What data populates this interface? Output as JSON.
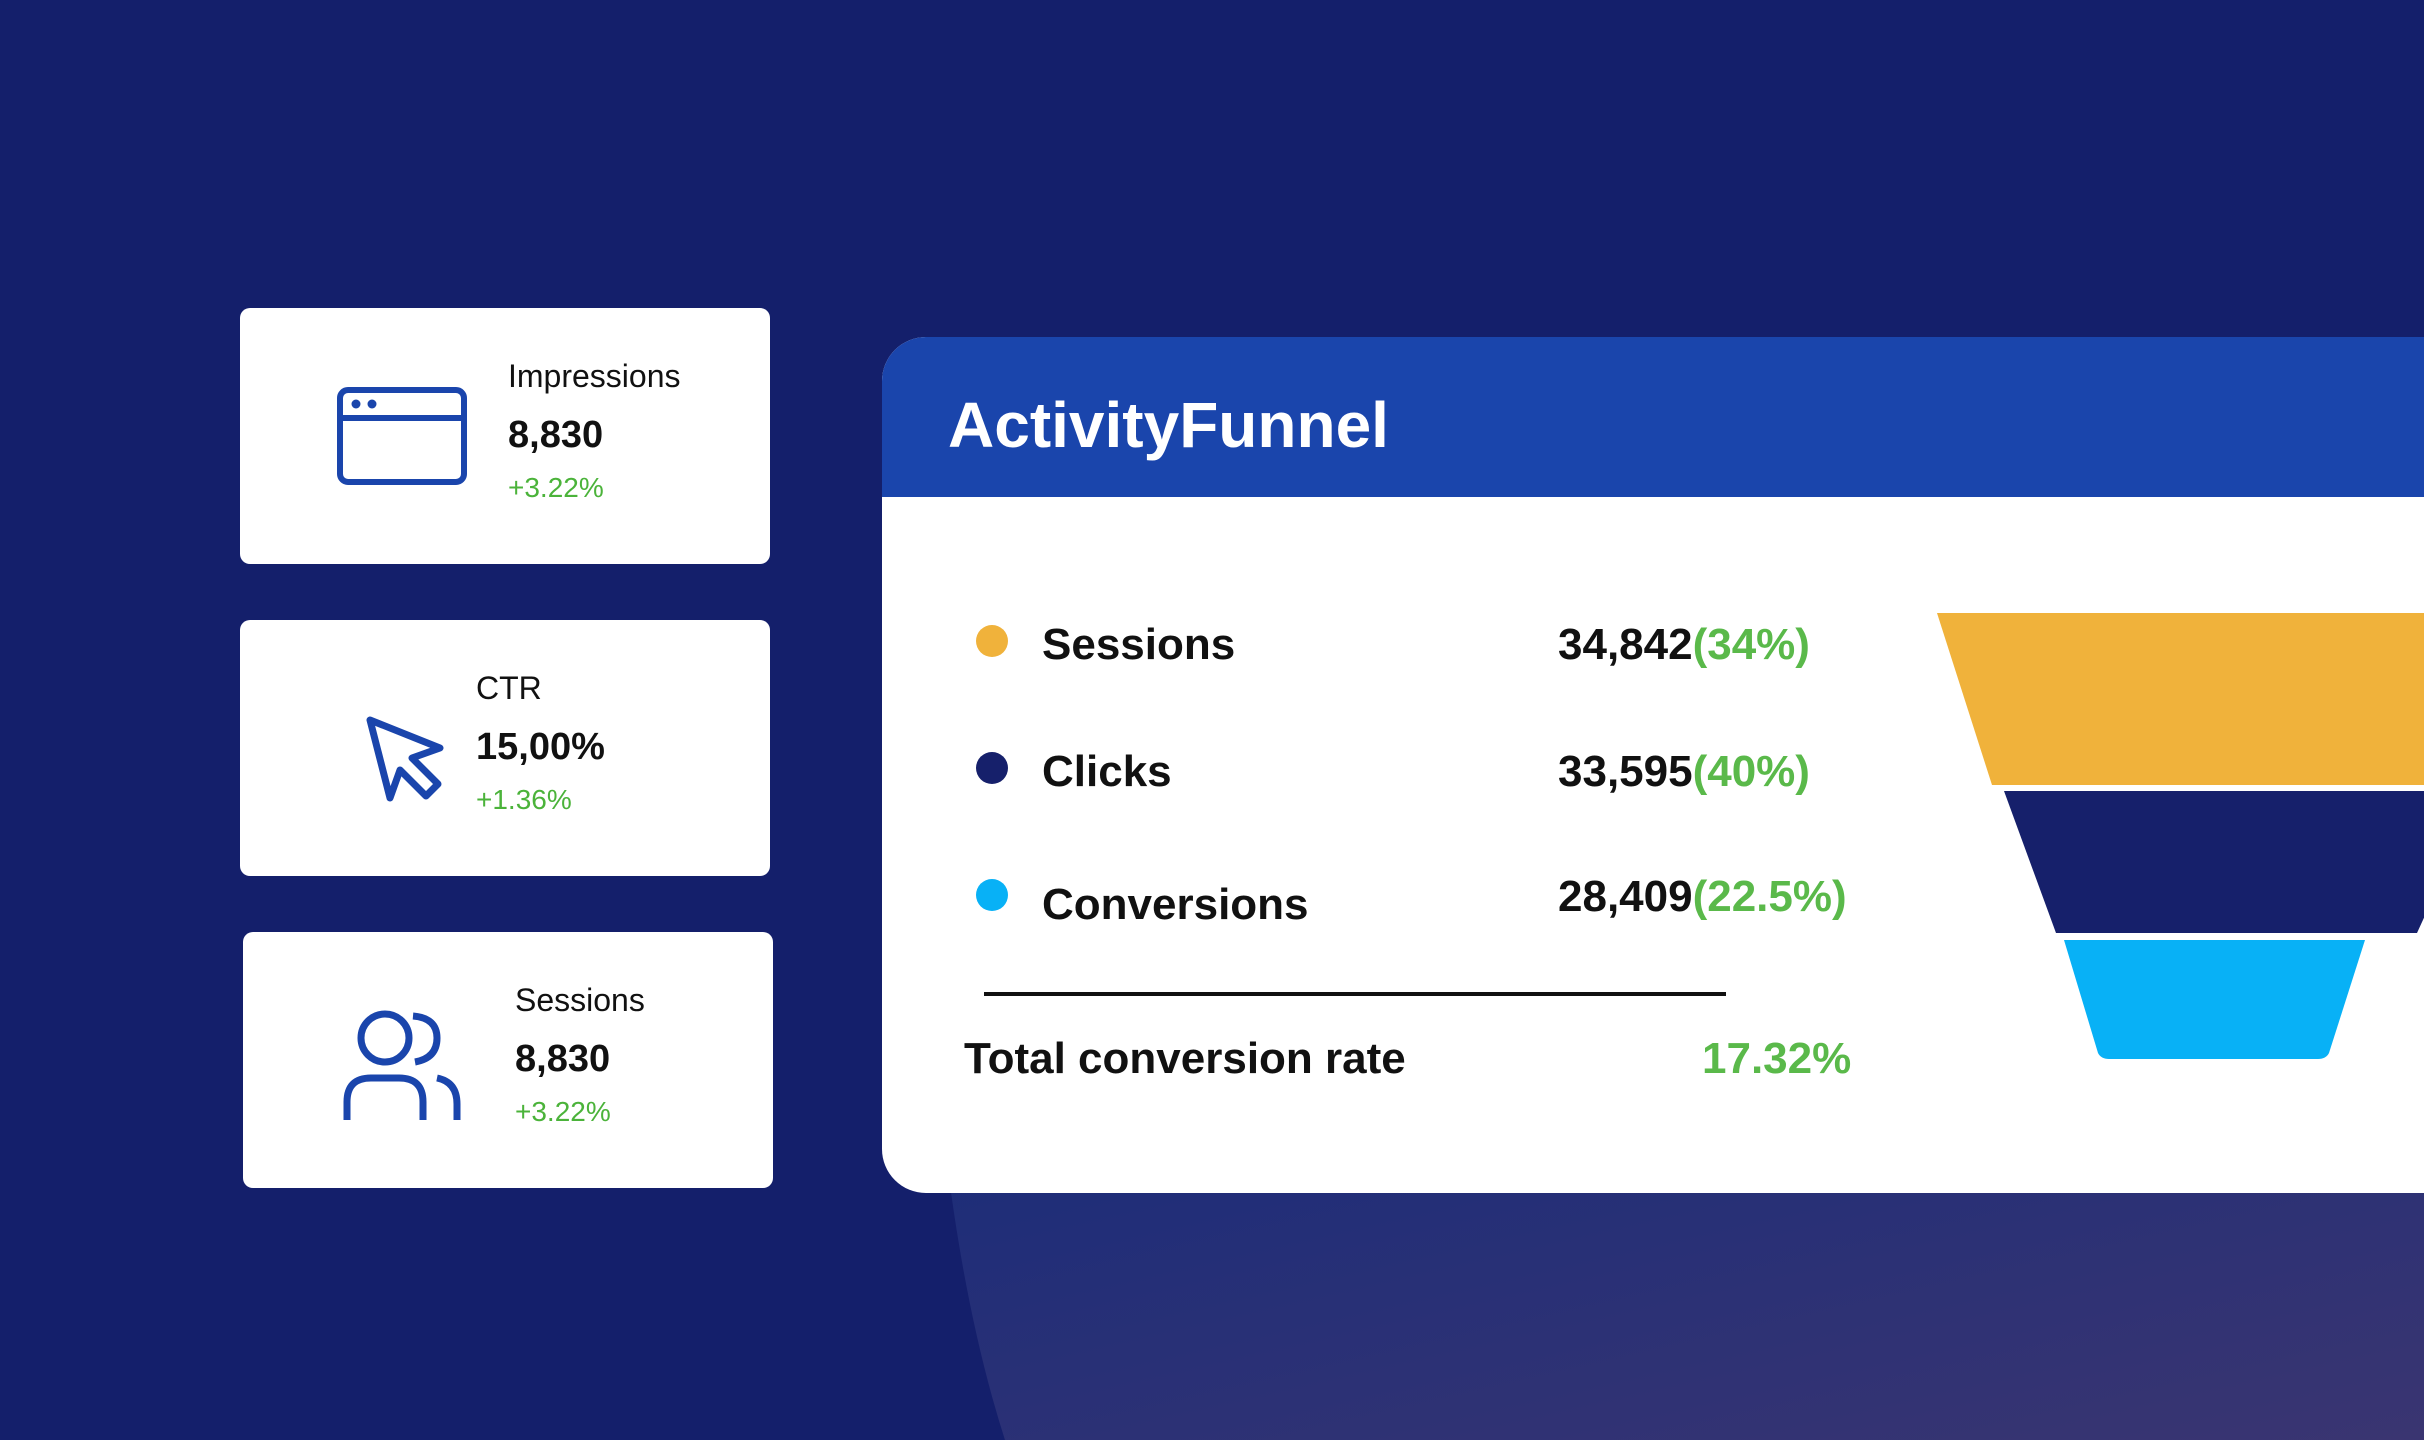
{
  "kpis": [
    {
      "label": "Impressions",
      "value": "8,830",
      "change": "+3.22%",
      "icon": "browser-window-icon"
    },
    {
      "label": "CTR",
      "value": "15,00%",
      "change": "+1.36%",
      "icon": "cursor-icon"
    },
    {
      "label": "Sessions",
      "value": "8,830",
      "change": "+3.22%",
      "icon": "users-icon"
    }
  ],
  "funnel": {
    "title": "ActivityFunnel",
    "stages": [
      {
        "name": "Sessions",
        "value": "34,842",
        "percent": "(34%)",
        "color": "#f0b23b"
      },
      {
        "name": "Clicks",
        "value": "33,595",
        "percent": "(40%)",
        "color": "#16206b"
      },
      {
        "name": "Conversions",
        "value": "28,409",
        "percent": "(22.5%)",
        "color": "#08b1f6"
      }
    ],
    "total_label": "Total conversion rate",
    "total_value": "17.32%"
  },
  "colors": {
    "background": "#141f6b",
    "header": "#1a45ac",
    "icon_blue": "#1a45ac",
    "positive": "#5ab94a"
  }
}
